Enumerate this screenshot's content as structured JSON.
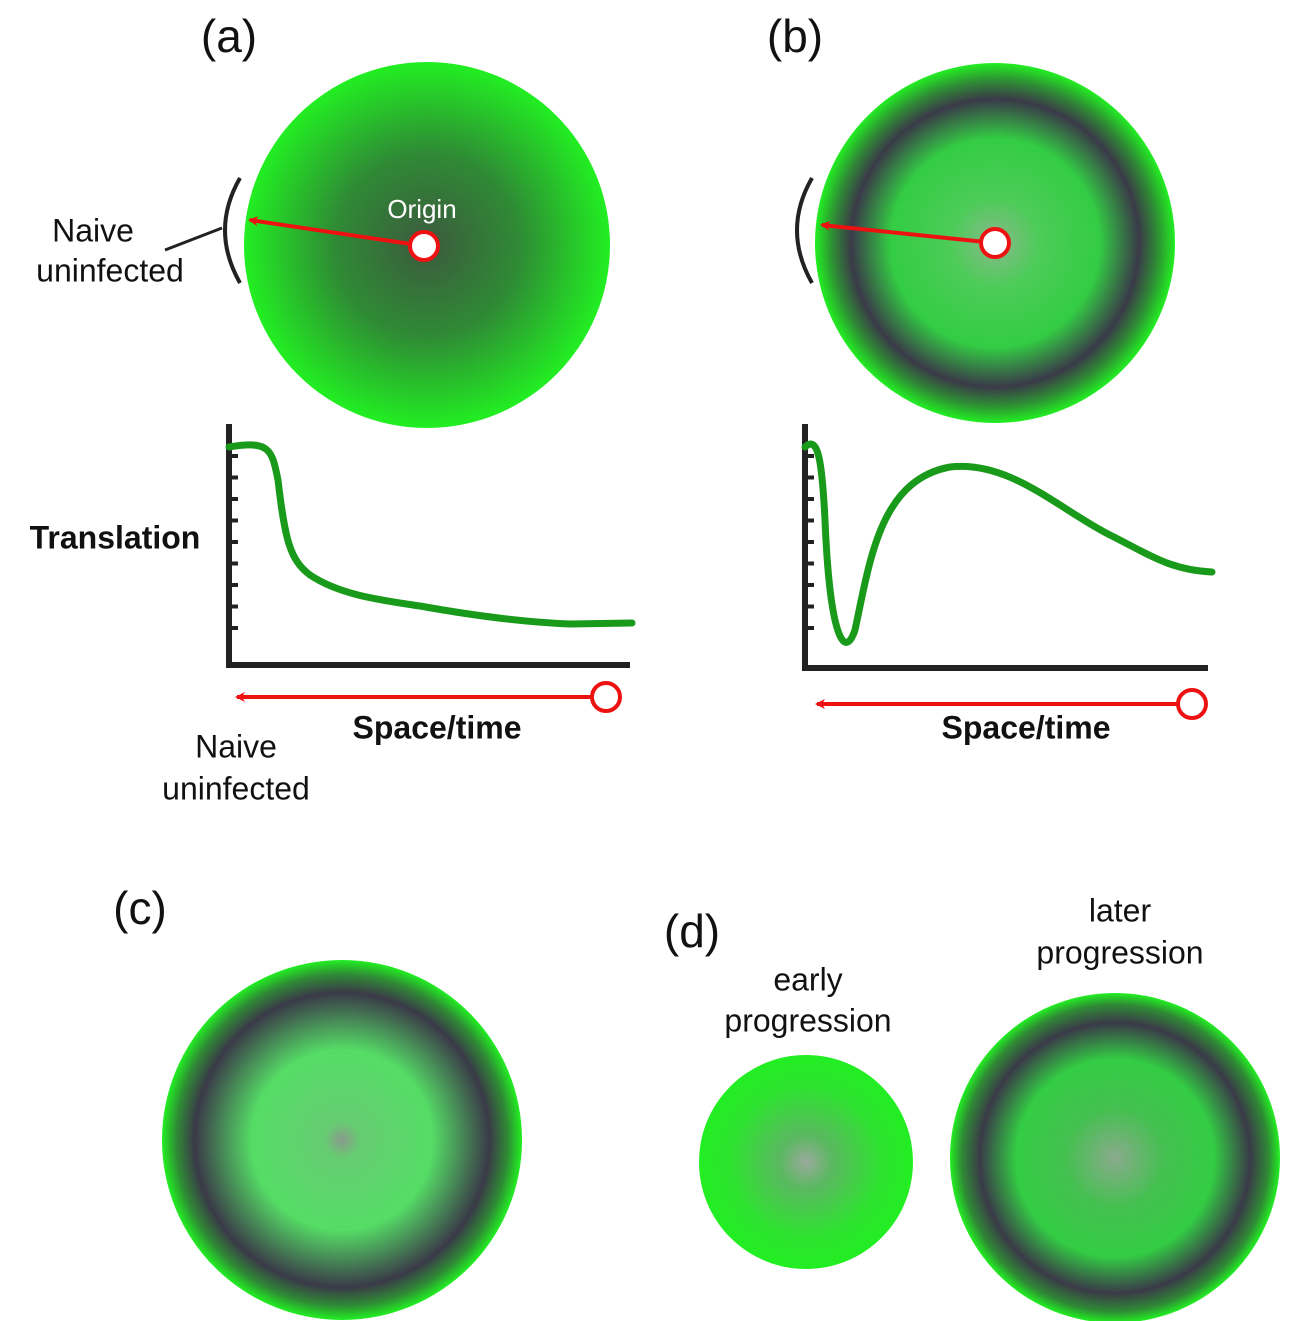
{
  "panels": {
    "a": {
      "label": "(a)",
      "origin": "Origin",
      "naive_top": [
        "Naive",
        "uninfected"
      ],
      "y_axis": "Translation",
      "x_axis": "Space/time",
      "naive_bottom": [
        "Naive",
        "uninfected"
      ]
    },
    "b": {
      "label": "(b)",
      "x_axis": "Space/time"
    },
    "c": {
      "label": "(c)"
    },
    "d": {
      "label": "(d)",
      "early": [
        "early",
        "progression"
      ],
      "later": [
        "later",
        "progression"
      ]
    }
  }
}
